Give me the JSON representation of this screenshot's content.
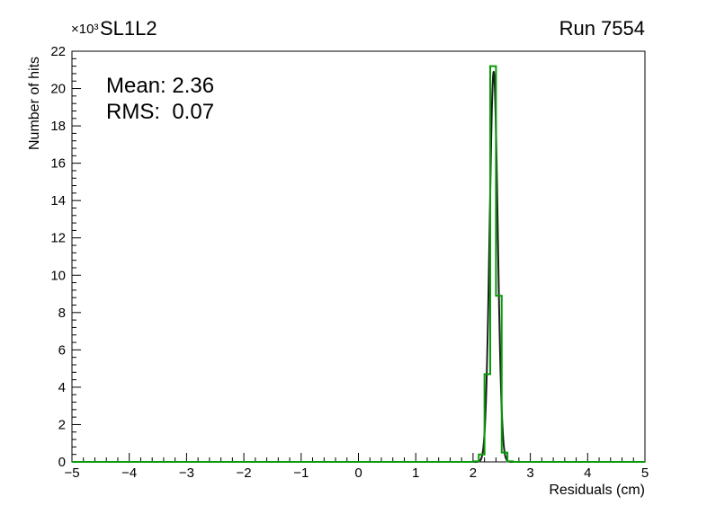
{
  "header": {
    "y_axis_multiplier": "×10³",
    "title": "SL1L2",
    "run_label": "Run 7554"
  },
  "stats_box": {
    "mean_line": "Mean: 2.36",
    "rms_line": "RMS:  0.07"
  },
  "axes": {
    "y_label": "Number of hits",
    "x_label": "Residuals (cm)"
  },
  "chart_data": {
    "type": "bar",
    "title": "SL1L2",
    "subtitle": "Run 7554",
    "xlabel": "Residuals (cm)",
    "ylabel": "Number of hits",
    "xlim": [
      -5,
      5
    ],
    "ylim": [
      0,
      22000
    ],
    "grid": false,
    "legend": "none",
    "y_scale_label": "×10³",
    "x_major_ticks": [
      -5,
      -4,
      -3,
      -2,
      -1,
      0,
      1,
      2,
      3,
      4,
      5
    ],
    "x_tick_labels": [
      "−5",
      "−4",
      "−3",
      "−2",
      "−1",
      "0",
      "1",
      "2",
      "3",
      "4",
      "5"
    ],
    "x_minor_step": 0.2,
    "y_major_ticks": [
      0,
      2000,
      4000,
      6000,
      8000,
      10000,
      12000,
      14000,
      16000,
      18000,
      20000,
      22000
    ],
    "y_tick_labels": [
      "0",
      "2",
      "4",
      "6",
      "8",
      "10",
      "12",
      "14",
      "16",
      "18",
      "20",
      "22"
    ],
    "y_minor_step": 400,
    "stats": {
      "mean": 2.36,
      "rms": 0.07
    },
    "series": [
      {
        "name": "gaussian-fit-curve",
        "type": "gaussian",
        "color": "#1c1c1c",
        "line_width": 2,
        "amplitude": 20900,
        "mean": 2.36,
        "sigma": 0.07,
        "range": [
          2.02,
          2.74
        ]
      },
      {
        "name": "residuals-histogram",
        "type": "step-histogram",
        "color": "#089a08",
        "line_width": 2,
        "bin_edges": [
          2.0,
          2.1,
          2.2,
          2.3,
          2.4,
          2.5,
          2.6,
          2.7
        ],
        "counts": [
          30,
          400,
          4700,
          21200,
          8900,
          500,
          30
        ]
      }
    ]
  }
}
